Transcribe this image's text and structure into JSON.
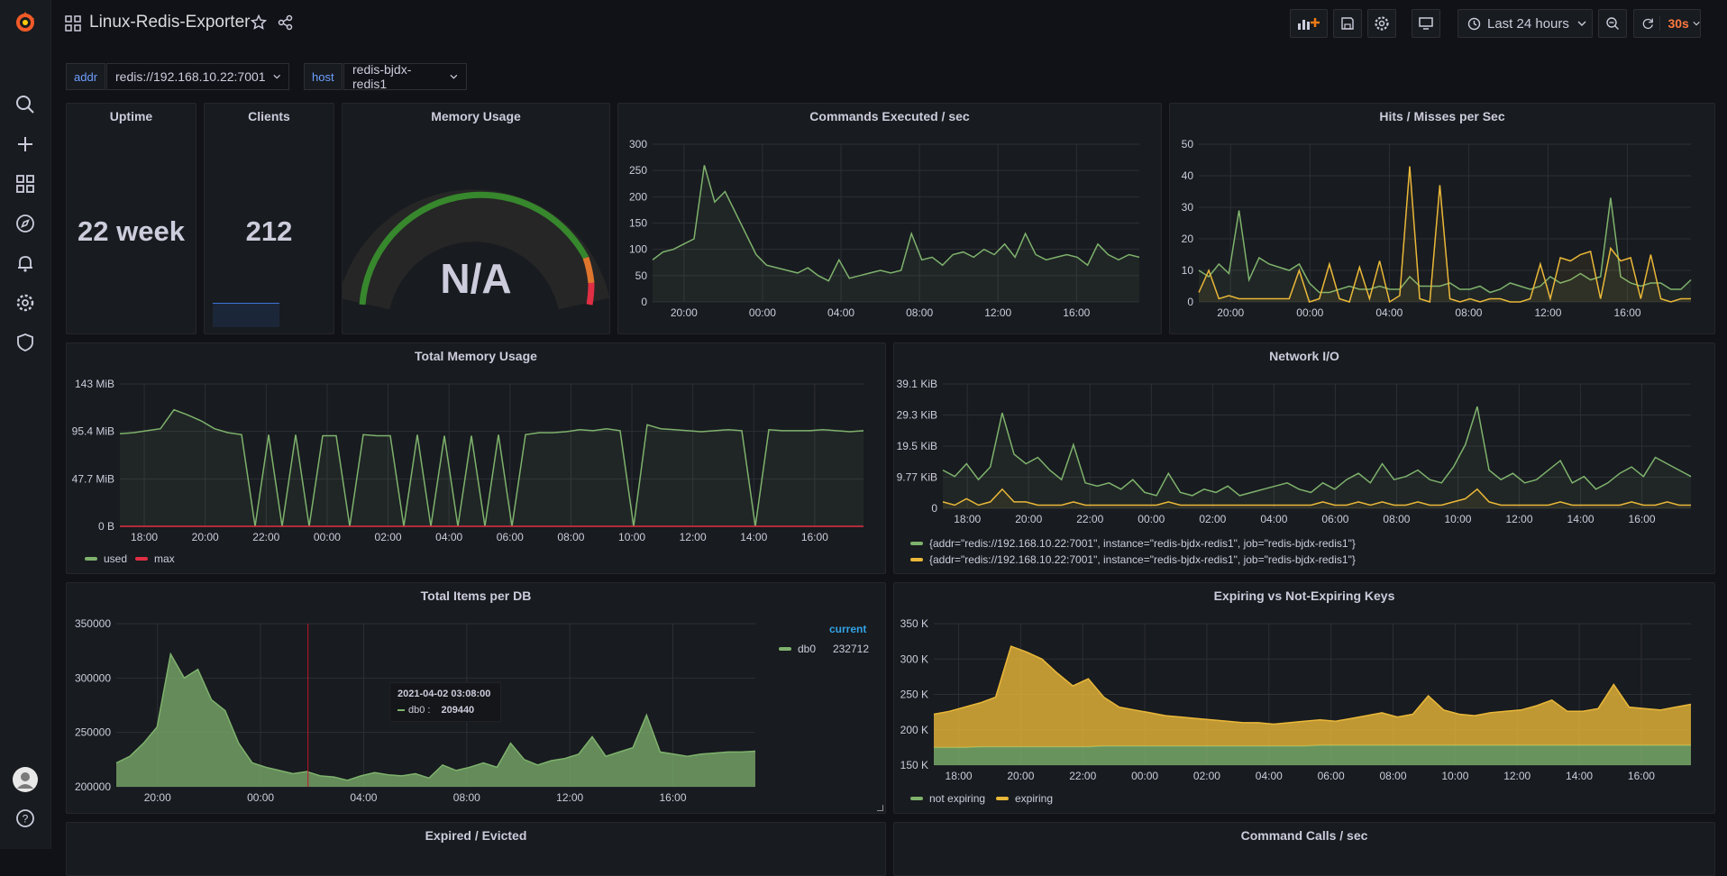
{
  "dashboard": {
    "title": "Linux-Redis-Exporter"
  },
  "toolbar": {
    "time_range": "Last 24 hours",
    "refresh": "30s"
  },
  "variables": [
    {
      "label": "addr",
      "value": "redis://192.168.10.22:7001"
    },
    {
      "label": "host",
      "value": "redis-bjdx-redis1"
    }
  ],
  "colors": {
    "green": "#7eb26d",
    "yellow": "#eab839",
    "red": "#e02f44",
    "blue": "#5794f2"
  },
  "panels": {
    "uptime": {
      "title": "Uptime",
      "value": "22 week"
    },
    "clients": {
      "title": "Clients",
      "value": "212"
    },
    "memory_usage": {
      "title": "Memory Usage",
      "value": "N/A"
    },
    "commands": {
      "title": "Commands Executed / sec"
    },
    "hits": {
      "title": "Hits / Misses per Sec"
    },
    "total_memory": {
      "title": "Total Memory Usage",
      "legend": [
        "used",
        "max"
      ]
    },
    "network": {
      "title": "Network I/O",
      "legend": [
        "{addr=\"redis://192.168.10.22:7001\", instance=\"redis-bjdx-redis1\", job=\"redis-bjdx-redis1\"}",
        "{addr=\"redis://192.168.10.22:7001\", instance=\"redis-bjdx-redis1\", job=\"redis-bjdx-redis1\"}"
      ]
    },
    "items": {
      "title": "Total Items per DB",
      "legend_header": "current",
      "legend_name": "db0",
      "legend_value": "232712",
      "tooltip_time": "2021-04-02 03:08:00",
      "tooltip_label": "db0 :",
      "tooltip_value": "209440"
    },
    "expiring": {
      "title": "Expiring vs Not-Expiring Keys",
      "legend": [
        "not expiring",
        "expiring"
      ]
    },
    "expired": {
      "title": "Expired / Evicted"
    },
    "calls": {
      "title": "Command Calls / sec"
    }
  },
  "chart_data": [
    {
      "type": "line",
      "title": "Commands Executed / sec",
      "xticks": [
        "20:00",
        "00:00",
        "04:00",
        "08:00",
        "12:00",
        "16:00"
      ],
      "yticks": [
        "0",
        "50",
        "100",
        "150",
        "200",
        "250",
        "300"
      ],
      "ylim": [
        0,
        300
      ],
      "series": [
        {
          "color": "#7eb26d",
          "values": [
            80,
            95,
            100,
            110,
            120,
            260,
            190,
            210,
            170,
            130,
            90,
            70,
            65,
            60,
            55,
            65,
            50,
            40,
            80,
            45,
            50,
            55,
            60,
            55,
            60,
            130,
            80,
            85,
            70,
            90,
            95,
            85,
            100,
            90,
            110,
            85,
            130,
            90,
            80,
            85,
            90,
            85,
            70,
            110,
            90,
            80,
            90,
            85
          ]
        }
      ]
    },
    {
      "type": "line",
      "title": "Hits / Misses per Sec",
      "xticks": [
        "20:00",
        "00:00",
        "04:00",
        "08:00",
        "12:00",
        "16:00"
      ],
      "yticks": [
        "0",
        "10",
        "20",
        "30",
        "40",
        "50"
      ],
      "ylim": [
        0,
        50
      ],
      "series": [
        {
          "color": "#7eb26d",
          "values": [
            10,
            8,
            12,
            9,
            29,
            7,
            14,
            12,
            11,
            10,
            12,
            6,
            3,
            3,
            4,
            5,
            4,
            4,
            5,
            4,
            4,
            8,
            5,
            5,
            5,
            6,
            4,
            4,
            5,
            3,
            4,
            6,
            5,
            4,
            5,
            8,
            6,
            7,
            9,
            7,
            8,
            33,
            8,
            6,
            5,
            6,
            6,
            4,
            4,
            7
          ]
        },
        {
          "color": "#eab839",
          "values": [
            3,
            10,
            1,
            2,
            1,
            1,
            1,
            1,
            1,
            1,
            10,
            0,
            1,
            12,
            1,
            0,
            11,
            1,
            13,
            0,
            2,
            43,
            1,
            0,
            37,
            1,
            0,
            1,
            0,
            1,
            1,
            0,
            0,
            1,
            12,
            1,
            14,
            13,
            15,
            16,
            1,
            17,
            13,
            14,
            1,
            15,
            1,
            0,
            1,
            1
          ]
        }
      ]
    },
    {
      "type": "line",
      "title": "Total Memory Usage",
      "xticks": [
        "18:00",
        "20:00",
        "22:00",
        "00:00",
        "02:00",
        "04:00",
        "06:00",
        "08:00",
        "10:00",
        "12:00",
        "14:00",
        "16:00"
      ],
      "yticks": [
        "0 B",
        "47.7 MiB",
        "95.4 MiB",
        "143 MiB"
      ],
      "ylim": [
        0,
        143
      ],
      "series": [
        {
          "name": "used",
          "color": "#7eb26d",
          "values": [
            93,
            94,
            96,
            98,
            117,
            112,
            106,
            98,
            94,
            92,
            0,
            92,
            0,
            92,
            0,
            91,
            91,
            0,
            92,
            91,
            91,
            0,
            92,
            0,
            91,
            0,
            91,
            0,
            92,
            0,
            92,
            94,
            94,
            95,
            97,
            96,
            98,
            96,
            0,
            102,
            98,
            97,
            96,
            95,
            96,
            97,
            96,
            0,
            97,
            96,
            96,
            96,
            97,
            96,
            95,
            96
          ]
        },
        {
          "name": "max",
          "color": "#e02f44",
          "values": [
            0,
            0
          ]
        }
      ]
    },
    {
      "type": "line",
      "title": "Network I/O",
      "xticks": [
        "18:00",
        "20:00",
        "22:00",
        "00:00",
        "02:00",
        "04:00",
        "06:00",
        "08:00",
        "10:00",
        "12:00",
        "14:00",
        "16:00"
      ],
      "yticks": [
        "0",
        "9.77 KiB",
        "19.5 KiB",
        "29.3 KiB",
        "39.1 KiB"
      ],
      "ylim": [
        0,
        39.1
      ],
      "series": [
        {
          "color": "#7eb26d",
          "values": [
            12,
            10,
            14,
            9,
            13,
            30,
            17,
            14,
            16,
            12,
            9,
            20,
            8,
            7,
            8,
            6,
            9,
            5,
            4,
            11,
            5,
            4,
            6,
            5,
            7,
            4,
            5,
            6,
            7,
            8,
            6,
            5,
            8,
            6,
            9,
            11,
            8,
            14,
            9,
            10,
            12,
            9,
            8,
            13,
            20,
            32,
            12,
            9,
            11,
            8,
            9,
            12,
            15,
            8,
            10,
            6,
            8,
            11,
            13,
            10,
            16,
            14,
            12,
            10
          ]
        },
        {
          "color": "#eab839",
          "values": [
            2,
            1,
            3,
            1,
            2,
            6,
            2,
            2,
            1,
            1,
            1,
            2,
            1,
            1,
            1,
            1,
            1,
            1,
            1,
            2,
            1,
            1,
            1,
            1,
            1,
            1,
            1,
            1,
            1,
            1,
            1,
            1,
            2,
            1,
            1,
            2,
            1,
            2,
            1,
            1,
            2,
            1,
            1,
            2,
            3,
            6,
            2,
            1,
            1,
            1,
            1,
            1,
            2,
            1,
            1,
            1,
            1,
            1,
            2,
            1,
            1,
            2,
            1,
            1
          ]
        }
      ]
    },
    {
      "type": "area",
      "title": "Total Items per DB",
      "xticks": [
        "20:00",
        "00:00",
        "04:00",
        "08:00",
        "12:00",
        "16:00"
      ],
      "yticks": [
        "200000",
        "250000",
        "300000",
        "350000"
      ],
      "ylim": [
        200000,
        350000
      ],
      "series": [
        {
          "name": "db0",
          "color": "#7eb26d",
          "values": [
            222000,
            228000,
            240000,
            255000,
            322000,
            300000,
            308000,
            280000,
            270000,
            240000,
            222000,
            218000,
            215000,
            212000,
            214000,
            210000,
            209000,
            206000,
            210000,
            213000,
            211000,
            210000,
            212000,
            208000,
            220000,
            215000,
            218000,
            222000,
            218000,
            240000,
            225000,
            220000,
            224000,
            226000,
            230000,
            246000,
            228000,
            232000,
            236000,
            266000,
            232000,
            230000,
            228000,
            230000,
            231000,
            232000,
            232000,
            232712
          ]
        }
      ]
    },
    {
      "type": "area",
      "title": "Expiring vs Not-Expiring Keys",
      "xticks": [
        "18:00",
        "20:00",
        "22:00",
        "00:00",
        "02:00",
        "04:00",
        "06:00",
        "08:00",
        "10:00",
        "12:00",
        "14:00",
        "16:00"
      ],
      "yticks": [
        "150 K",
        "200 K",
        "250 K",
        "300 K",
        "350 K"
      ],
      "ylim": [
        150,
        350
      ],
      "series": [
        {
          "name": "not expiring",
          "color": "#7eb26d",
          "values": [
            175,
            175,
            175,
            176,
            176,
            176,
            176,
            176,
            176,
            176,
            176,
            177,
            177,
            177,
            177,
            177,
            177,
            177,
            177,
            177,
            177,
            177,
            177,
            177,
            177,
            178,
            178,
            178,
            178,
            178,
            178,
            178,
            178,
            178,
            178,
            178,
            178,
            178,
            178,
            178,
            178,
            178,
            178,
            178,
            178,
            178,
            178,
            178,
            178,
            178
          ]
        },
        {
          "name": "expiring",
          "color": "#eab839",
          "values": [
            222,
            226,
            232,
            238,
            246,
            318,
            310,
            300,
            280,
            262,
            272,
            246,
            232,
            228,
            224,
            220,
            218,
            216,
            214,
            212,
            210,
            210,
            208,
            210,
            212,
            214,
            212,
            216,
            220,
            224,
            218,
            222,
            248,
            228,
            222,
            220,
            224,
            226,
            228,
            234,
            242,
            226,
            226,
            230,
            264,
            232,
            230,
            228,
            232,
            236
          ]
        }
      ]
    }
  ]
}
